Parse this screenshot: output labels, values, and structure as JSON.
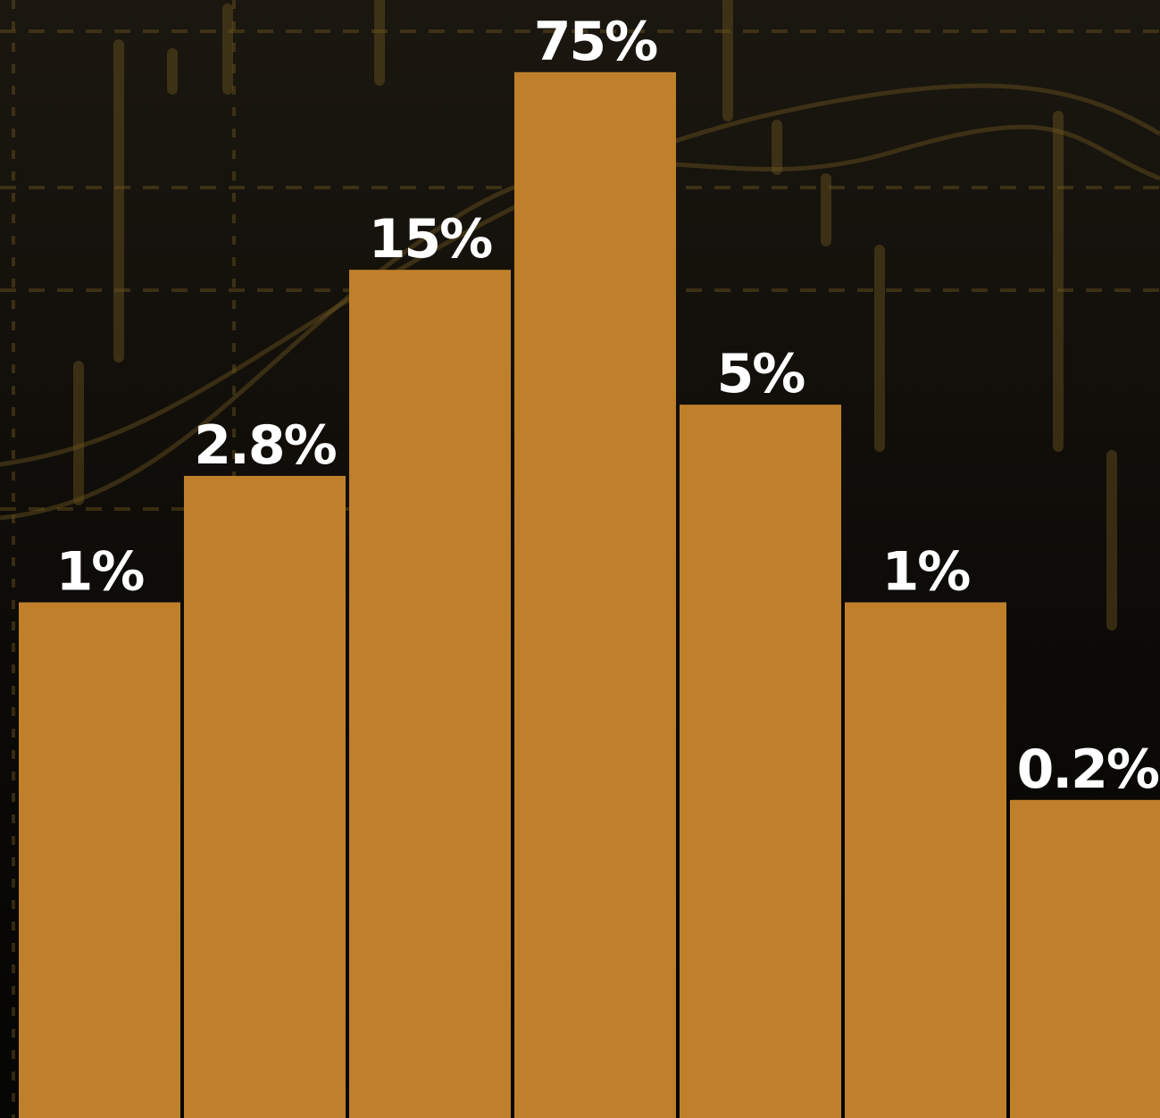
{
  "chart_data": {
    "type": "bar",
    "log_scale": true,
    "color": "#c0802b",
    "values": [
      1,
      2.8,
      15,
      75,
      5,
      1,
      0.2
    ],
    "value_labels": [
      "1%",
      "2.8%",
      "15%",
      "75%",
      "5%",
      "1%",
      "0.2%"
    ],
    "ylim": [
      0.015,
      135
    ]
  }
}
